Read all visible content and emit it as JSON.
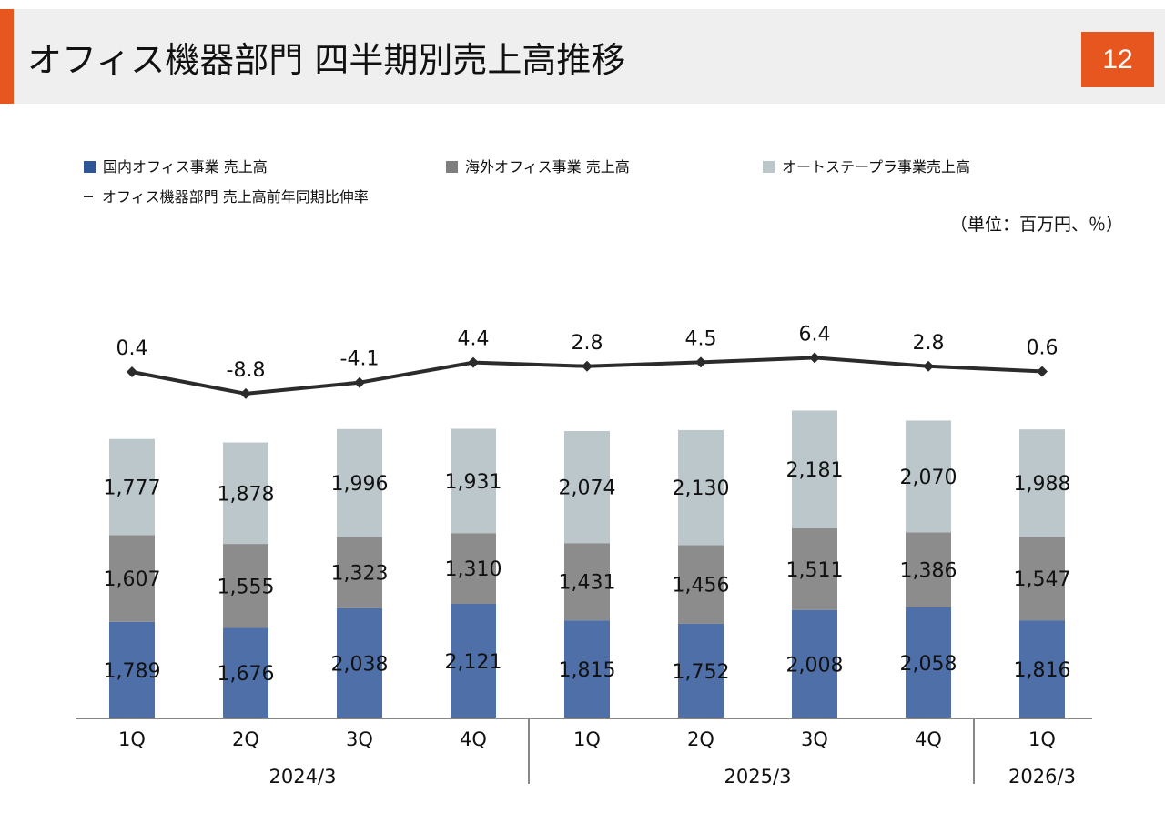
{
  "page": {
    "title": "オフィス機器部門 四半期別売上高推移",
    "page_number": "12",
    "unit_note": "（単位：百万円、％）"
  },
  "colors": {
    "accent": "#e8561f",
    "domestic": "#4e6fa8",
    "overseas": "#8c8c8c",
    "autostapler": "#bcc7cb",
    "growth_line": "#2b2b2b"
  },
  "legend": {
    "domestic": "国内オフィス事業 売上高",
    "overseas": "海外オフィス事業 売上高",
    "autostapler": "オートステープラ事業売上高",
    "growth": "オフィス機器部門 売上高前年同期比伸率"
  },
  "chart_data": {
    "type": "bar",
    "stacked": true,
    "categories": [
      "1Q",
      "2Q",
      "3Q",
      "4Q",
      "1Q",
      "2Q",
      "3Q",
      "4Q",
      "1Q"
    ],
    "groups": [
      {
        "label": "2024/3",
        "span": [
          0,
          3
        ]
      },
      {
        "label": "2025/3",
        "span": [
          4,
          7
        ]
      },
      {
        "label": "2026/3",
        "span": [
          8,
          8
        ]
      }
    ],
    "series": [
      {
        "key": "domestic",
        "name": "国内オフィス事業 売上高",
        "color": "#4e6fa8",
        "values": [
          1789,
          1676,
          2038,
          2121,
          1815,
          1752,
          2008,
          2058,
          1816
        ],
        "labels": [
          "1,789",
          "1,676",
          "2,038",
          "2,121",
          "1,815",
          "1,752",
          "2,008",
          "2,058",
          "1,816"
        ]
      },
      {
        "key": "overseas",
        "name": "海外オフィス事業 売上高",
        "color": "#8c8c8c",
        "values": [
          1607,
          1555,
          1323,
          1310,
          1431,
          1456,
          1511,
          1386,
          1547
        ],
        "labels": [
          "1,607",
          "1,555",
          "1,323",
          "1,310",
          "1,431",
          "1,456",
          "1,511",
          "1,386",
          "1,547"
        ]
      },
      {
        "key": "autostapler",
        "name": "オートステープラ事業売上高",
        "color": "#bcc7cb",
        "values": [
          1777,
          1878,
          1996,
          1931,
          2074,
          2130,
          2181,
          2070,
          1988
        ],
        "labels": [
          "1,777",
          "1,878",
          "1,996",
          "1,931",
          "2,074",
          "2,130",
          "2,181",
          "2,070",
          "1,988"
        ]
      }
    ],
    "line": {
      "name": "オフィス機器部門 売上高前年同期比伸率",
      "values": [
        0.4,
        -8.8,
        -4.1,
        4.4,
        2.8,
        4.5,
        6.4,
        2.8,
        0.6
      ],
      "labels": [
        "0.4",
        "-8.8",
        "-4.1",
        "4.4",
        "2.8",
        "4.5",
        "6.4",
        "2.8",
        "0.6"
      ],
      "marker": "diamond"
    },
    "legend_position": "top",
    "grid": false
  }
}
